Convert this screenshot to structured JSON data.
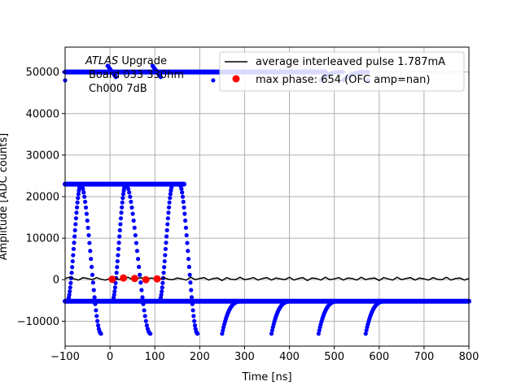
{
  "chart_data": {
    "type": "scatter",
    "xlabel": "Time [ns]",
    "ylabel": "Amplitude [ADC counts]",
    "xlim": [
      -100,
      800
    ],
    "ylim": [
      -16000,
      56000
    ],
    "xticks": [
      -100,
      0,
      100,
      200,
      300,
      400,
      500,
      600,
      700,
      800
    ],
    "yticks": [
      -10000,
      0,
      10000,
      20000,
      30000,
      40000,
      50000
    ],
    "grid": true,
    "legend_position": "top-right",
    "annotation": {
      "line1_italic": "ATLAS",
      "line1_rest": " Upgrade",
      "line2": "Board 033  330hm",
      "line3": "Ch000 7dB"
    },
    "colors": {
      "samples": "#0000ff",
      "average": "#000000",
      "max_phase": "#ff0000",
      "grid": "#b0b0b0"
    },
    "baseline": {
      "low": -5200,
      "high": 50000,
      "saturation": 23000,
      "undershoot": -13000
    },
    "high_rail_pulses": [
      {
        "x_start": -100,
        "x_end": 165,
        "level": 23000,
        "start_level": 23000,
        "end_undershoot": -13000,
        "x_undershoot": 90
      },
      {
        "x_start": -22,
        "x_end": 165,
        "level": 23000,
        "rise_start": -22,
        "rise_end": 5
      }
    ],
    "series": [
      {
        "name": "average interleaved pulse 1.787mA",
        "kind": "line",
        "x": [
          -100,
          -90,
          -80,
          -70,
          -60,
          -50,
          -40,
          -30,
          -20,
          -10,
          0,
          10,
          20,
          30,
          40,
          50,
          60,
          70,
          80,
          90,
          100,
          110,
          120,
          130,
          140,
          150,
          160,
          170,
          180,
          190,
          200,
          210,
          220,
          230,
          240,
          250,
          260,
          270,
          280,
          290,
          300,
          310,
          320,
          330,
          340,
          350,
          360,
          370,
          380,
          390,
          400,
          410,
          420,
          430,
          440,
          450,
          460,
          470,
          480,
          490,
          500,
          510,
          520,
          530,
          540,
          550,
          560,
          570,
          580,
          590,
          600,
          610,
          620,
          630,
          640,
          650,
          660,
          670,
          680,
          690,
          700,
          710,
          720,
          730,
          740,
          750,
          760,
          770,
          780,
          790,
          800
        ],
        "y": [
          300,
          600,
          200,
          -100,
          500,
          300,
          0,
          500,
          100,
          -100,
          300,
          600,
          0,
          200,
          600,
          0,
          300,
          500,
          -100,
          400,
          300,
          0,
          500,
          100,
          0,
          400,
          200,
          -100,
          600,
          0,
          300,
          500,
          -100,
          300,
          400,
          -200,
          500,
          100,
          0,
          600,
          0,
          200,
          500,
          -100,
          300,
          500,
          -100,
          400,
          200,
          0,
          600,
          -100,
          300,
          500,
          -200,
          400,
          300,
          -100,
          600,
          0,
          200,
          500,
          -100,
          400,
          300,
          -100,
          600,
          0,
          300,
          400,
          -200,
          500,
          200,
          -100,
          600,
          0,
          300,
          500,
          -100,
          400,
          200,
          -100,
          500,
          100,
          0,
          600,
          -100,
          300,
          400,
          -100,
          300
        ]
      },
      {
        "name": "max phase: 654 (OFC amp=nan)",
        "kind": "points",
        "x": [
          5,
          30,
          55,
          80,
          105
        ],
        "y": [
          100,
          400,
          300,
          0,
          200
        ]
      }
    ],
    "blue_pulses": [
      {
        "kind": "rise",
        "x0": -95,
        "x1": -65,
        "y0": -5200,
        "y1": 23000
      },
      {
        "kind": "fall",
        "x0": -65,
        "x1": -20,
        "y0": 23000,
        "y1": -13000
      },
      {
        "kind": "rise",
        "x0": 5,
        "x1": 35,
        "y0": -5200,
        "y1": 23000
      },
      {
        "kind": "fall",
        "x0": 35,
        "x1": 90,
        "y0": 23000,
        "y1": -13000
      },
      {
        "kind": "rise",
        "x0": 110,
        "x1": 140,
        "y0": -5200,
        "y1": 23000
      },
      {
        "kind": "fall",
        "x0": 155,
        "x1": 195,
        "y0": 23000,
        "y1": -13000
      },
      {
        "kind": "recover",
        "x0": 250,
        "x1": 295,
        "y0": -13000,
        "y1": -5200
      },
      {
        "kind": "recover",
        "x0": 360,
        "x1": 405,
        "y0": -13000,
        "y1": -5200
      },
      {
        "kind": "recover",
        "x0": 465,
        "x1": 510,
        "y0": -13000,
        "y1": -5200
      },
      {
        "kind": "recover",
        "x0": 570,
        "x1": 615,
        "y0": -13000,
        "y1": -5200
      },
      {
        "kind": "recover",
        "x0": 470,
        "x1": 520,
        "y0": 48000,
        "y1": 50000
      },
      {
        "kind": "recover",
        "x0": 520,
        "x1": 575,
        "y0": 48000,
        "y1": 50000
      }
    ]
  }
}
